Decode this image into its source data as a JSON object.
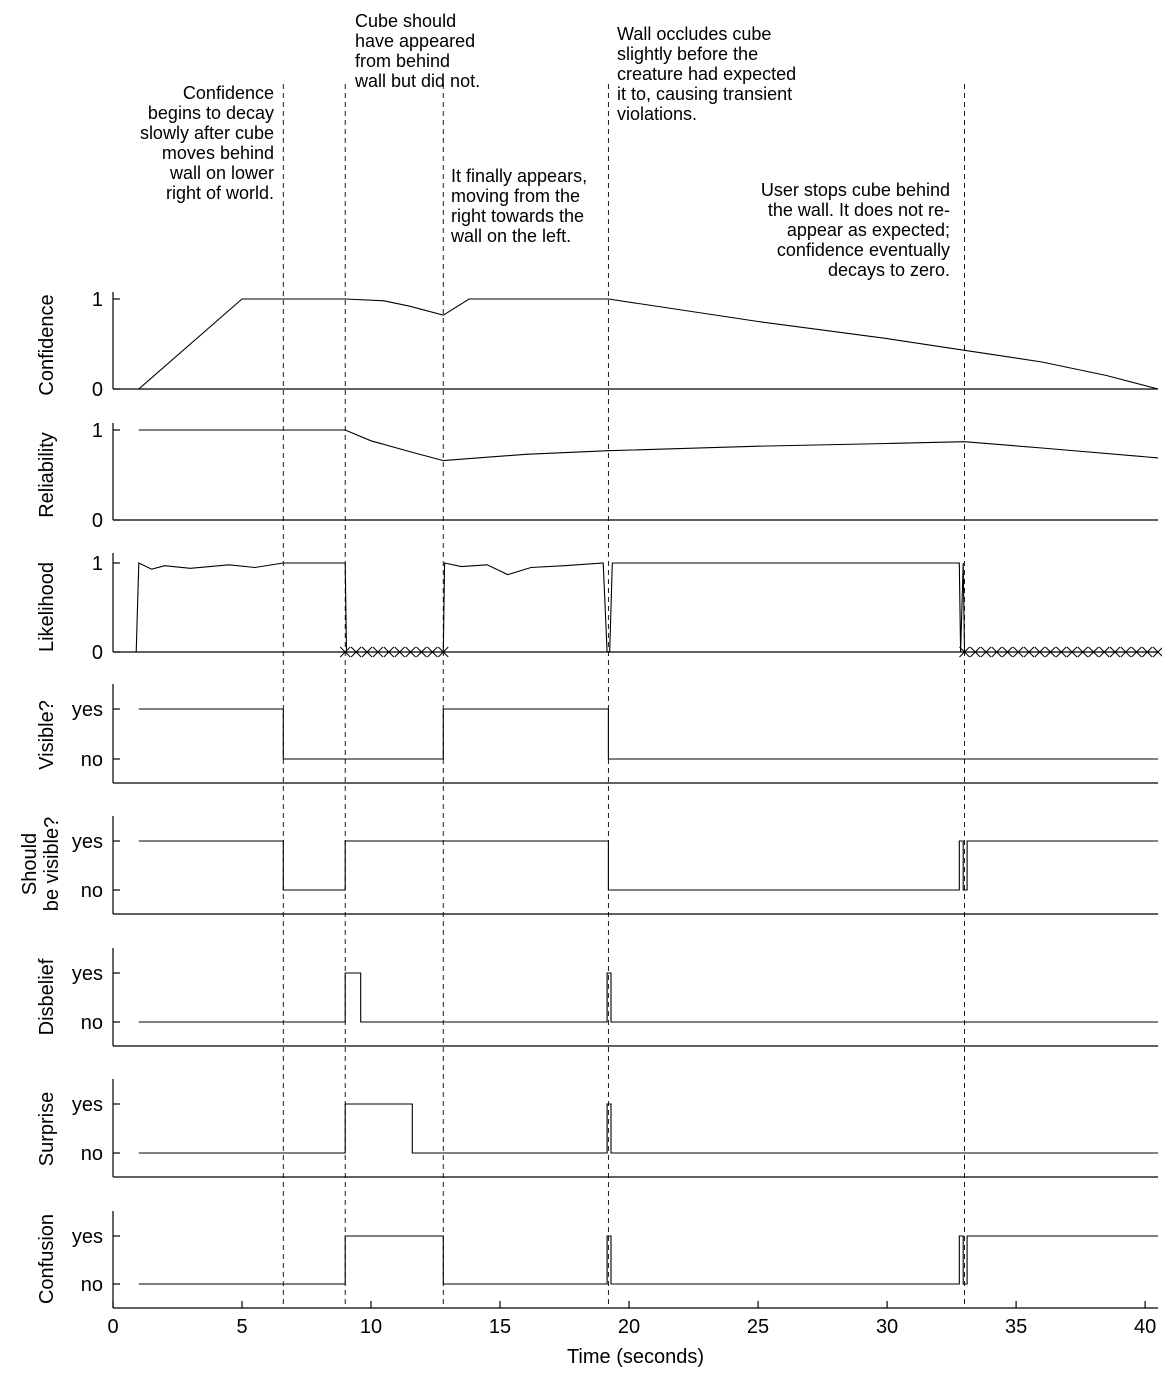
{
  "annotations": [
    {
      "text": "Confidence\nbegins to decay\nslowly after cube\nmoves behind\nwall on lower\nright of world."
    },
    {
      "text": "Cube should\nhave appeared\nfrom behind\nwall but did not."
    },
    {
      "text": "Wall occludes cube\nslightly before the\ncreature had expected\nit to, causing transient\nviolations."
    },
    {
      "text": "It finally appears,\nmoving from the\nright towards the\nwall on the left."
    },
    {
      "text": "User stops cube behind\nthe wall. It does not re-\nappear as expected;\nconfidence eventually\ndecays to zero."
    }
  ],
  "chart_data": {
    "type": "line",
    "xlabel": "Time (seconds)",
    "xlim": [
      0,
      40.5
    ],
    "x_ticks": [
      0,
      5,
      10,
      15,
      20,
      25,
      30,
      35,
      40
    ],
    "x_tick_labels": [
      "0",
      "5",
      "10",
      "15",
      "20",
      "25",
      "30",
      "35",
      "40"
    ],
    "event_lines_x": [
      6.6,
      9.0,
      12.8,
      19.2,
      33.0
    ],
    "panels": [
      {
        "ylabel": "Confidence",
        "tick_labels": [
          "1",
          "0"
        ],
        "tick_values": [
          1,
          0
        ],
        "x": [
          1.0,
          5.0,
          9.0,
          10.5,
          11.5,
          12.8,
          13.8,
          19.2,
          25.0,
          30.0,
          33.0,
          36.0,
          38.5,
          40.5
        ],
        "y": [
          0.0,
          1.0,
          1.0,
          0.98,
          0.92,
          0.82,
          1.0,
          1.0,
          0.75,
          0.56,
          0.43,
          0.3,
          0.15,
          0.0
        ]
      },
      {
        "ylabel": "Reliability",
        "tick_labels": [
          "1",
          "0"
        ],
        "tick_values": [
          1,
          0
        ],
        "x": [
          1.0,
          9.0,
          10.0,
          11.5,
          12.8,
          16.0,
          19.2,
          25.0,
          30.0,
          33.0,
          36.0,
          40.5
        ],
        "y": [
          1.0,
          1.0,
          0.88,
          0.76,
          0.66,
          0.73,
          0.77,
          0.82,
          0.85,
          0.87,
          0.8,
          0.69
        ]
      },
      {
        "ylabel": "Likelihood",
        "tick_labels": [
          "1",
          "0"
        ],
        "tick_values": [
          1,
          0
        ],
        "x": [
          0.9,
          1.0,
          1.5,
          2.0,
          3.0,
          4.5,
          5.5,
          6.6,
          9.0,
          9.05,
          12.8,
          12.85,
          13.5,
          14.5,
          15.3,
          16.2,
          17.5,
          19.0,
          19.15,
          19.25,
          19.35,
          32.8,
          32.85,
          32.95,
          33.0,
          40.5
        ],
        "y": [
          0.0,
          1.0,
          0.93,
          0.97,
          0.94,
          0.98,
          0.95,
          1.0,
          1.0,
          0.0,
          0.0,
          1.0,
          0.96,
          0.98,
          0.87,
          0.95,
          0.97,
          1.0,
          0.0,
          0.0,
          1.0,
          1.0,
          0.0,
          1.0,
          0.0,
          0.0
        ],
        "violation_markers": [
          {
            "x_start": 9.0,
            "x_end": 12.8,
            "count": 9
          },
          {
            "x_start": 33.0,
            "x_end": 40.5,
            "count": 18
          }
        ]
      },
      {
        "ylabel": "Visible?",
        "tick_labels": [
          "yes",
          "no"
        ],
        "tick_values": [
          1,
          0
        ],
        "x": [
          1.0,
          6.6,
          6.6,
          12.8,
          12.8,
          19.2,
          19.2,
          40.5
        ],
        "y": [
          1,
          1,
          0,
          0,
          1,
          1,
          0,
          0
        ]
      },
      {
        "ylabel": "Should\nbe visible?",
        "tick_labels": [
          "yes",
          "no"
        ],
        "tick_values": [
          1,
          0
        ],
        "x": [
          1.0,
          6.6,
          6.6,
          9.0,
          9.0,
          19.2,
          19.2,
          32.8,
          32.8,
          32.95,
          32.95,
          33.1,
          33.1,
          40.5
        ],
        "y": [
          1,
          1,
          0,
          0,
          1,
          1,
          0,
          0,
          1,
          1,
          0,
          0,
          1,
          1
        ]
      },
      {
        "ylabel": "Disbelief",
        "tick_labels": [
          "yes",
          "no"
        ],
        "tick_values": [
          1,
          0
        ],
        "x": [
          1.0,
          9.0,
          9.0,
          9.6,
          9.6,
          19.15,
          19.15,
          19.3,
          19.3,
          40.5
        ],
        "y": [
          0,
          0,
          1,
          1,
          0,
          0,
          1,
          1,
          0,
          0
        ]
      },
      {
        "ylabel": "Surprise",
        "tick_labels": [
          "yes",
          "no"
        ],
        "tick_values": [
          1,
          0
        ],
        "x": [
          1.0,
          9.0,
          9.0,
          11.6,
          11.6,
          19.15,
          19.15,
          19.3,
          19.3,
          40.5
        ],
        "y": [
          0,
          0,
          1,
          1,
          0,
          0,
          1,
          1,
          0,
          0
        ]
      },
      {
        "ylabel": "Confusion",
        "tick_labels": [
          "yes",
          "no"
        ],
        "tick_values": [
          1,
          0
        ],
        "x": [
          1.0,
          9.0,
          9.0,
          12.8,
          12.8,
          19.15,
          19.15,
          19.3,
          19.3,
          32.8,
          32.8,
          32.95,
          32.95,
          33.1,
          33.1,
          40.5
        ],
        "y": [
          0,
          0,
          1,
          1,
          0,
          0,
          1,
          1,
          0,
          0,
          1,
          1,
          0,
          0,
          1,
          1
        ]
      }
    ]
  }
}
